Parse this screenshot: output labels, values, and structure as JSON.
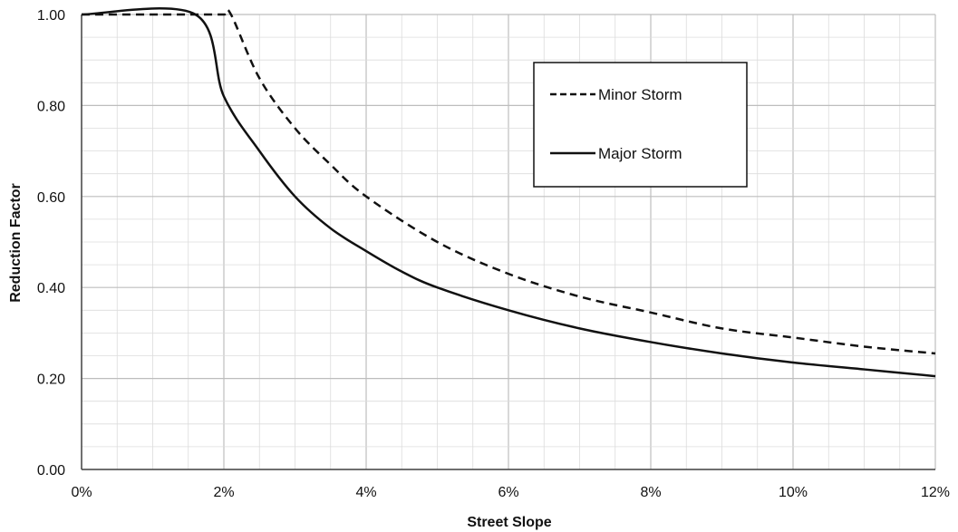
{
  "chart_data": {
    "type": "line",
    "title": "",
    "xlabel": "Street Slope",
    "ylabel": "Reduction Factor",
    "xlim": [
      0,
      12
    ],
    "ylim": [
      0,
      1
    ],
    "x_ticks": [
      0,
      2,
      4,
      6,
      8,
      10,
      12
    ],
    "x_tick_labels": [
      "0%",
      "2%",
      "4%",
      "6%",
      "8%",
      "10%",
      "12%"
    ],
    "y_ticks": [
      0,
      0.2,
      0.4,
      0.6,
      0.8,
      1.0
    ],
    "y_tick_labels": [
      "0.00",
      "0.20",
      "0.40",
      "0.60",
      "0.80",
      "1.00"
    ],
    "grid": true,
    "legend_position": "top-right",
    "series": [
      {
        "name": "Minor Storm",
        "line_style": "dashed",
        "color": "#111111",
        "x": [
          0,
          1.6,
          2.0,
          2.1,
          2.5,
          3.0,
          3.5,
          4.0,
          5.0,
          6.0,
          7.0,
          8.0,
          9.0,
          10.0,
          11.0,
          12.0
        ],
        "y": [
          1.0,
          1.0,
          1.0,
          1.0,
          0.86,
          0.75,
          0.67,
          0.6,
          0.5,
          0.43,
          0.38,
          0.345,
          0.31,
          0.29,
          0.27,
          0.255
        ]
      },
      {
        "name": "Major Storm",
        "line_style": "solid",
        "color": "#111111",
        "x": [
          0,
          1.6,
          2.0,
          2.5,
          3.0,
          3.5,
          4.0,
          4.5,
          5.0,
          6.0,
          7.0,
          8.0,
          9.0,
          10.0,
          11.0,
          12.0
        ],
        "y": [
          1.0,
          1.0,
          0.82,
          0.7,
          0.6,
          0.53,
          0.48,
          0.435,
          0.4,
          0.35,
          0.31,
          0.28,
          0.255,
          0.235,
          0.22,
          0.205
        ]
      }
    ]
  }
}
